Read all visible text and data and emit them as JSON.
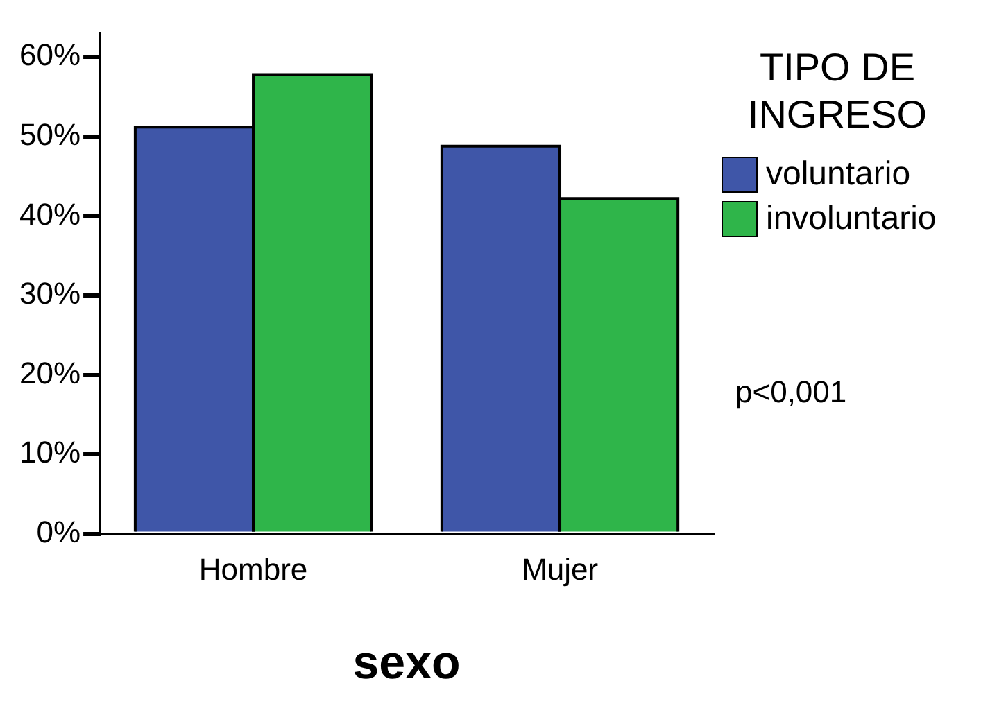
{
  "chart_data": {
    "type": "bar",
    "xlabel": "sexo",
    "legend_title": "TIPO DE INGRESO",
    "categories": [
      "Hombre",
      "Mujer"
    ],
    "series": [
      {
        "name": "voluntario",
        "color": "#3f56a8",
        "values": [
          51.2,
          48.8
        ]
      },
      {
        "name": "involuntario",
        "color": "#2fb54a",
        "values": [
          57.8,
          42.2
        ]
      }
    ],
    "ylim": [
      0,
      63
    ],
    "yticks": [
      {
        "value": 0,
        "label": "0%"
      },
      {
        "value": 10,
        "label": "10%"
      },
      {
        "value": 20,
        "label": "20%"
      },
      {
        "value": 30,
        "label": "30%"
      },
      {
        "value": 40,
        "label": "40%"
      },
      {
        "value": 50,
        "label": "50%"
      },
      {
        "value": 60,
        "label": "60%"
      }
    ],
    "legend": "right",
    "grid": false,
    "annotations": [
      "p<0,001"
    ]
  }
}
